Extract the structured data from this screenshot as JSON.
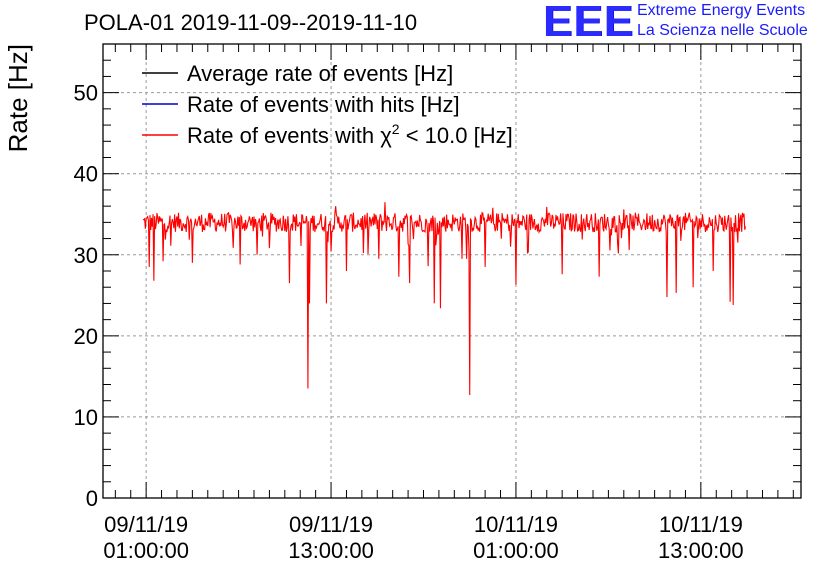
{
  "header": {
    "title": "POLA-01 2019-11-09--2019-11-10",
    "logo_text": "EEE",
    "logo_line1": "Extreme Energy Events",
    "logo_line2": "La Scienza nelle Scuole"
  },
  "colors": {
    "average": "#000000",
    "hits": "#0000cc",
    "chi2": "#ff0000",
    "logo": "#2b2bff",
    "grid": "#9a9a9a"
  },
  "chart_data": {
    "type": "line",
    "ylabel": "Rate [Hz]",
    "xlabel": "",
    "ylim": [
      0,
      56
    ],
    "xlim_hours": [
      -2.8,
      42.5
    ],
    "grid": true,
    "legend_position": "top-left",
    "y_ticks": [
      0,
      10,
      20,
      30,
      40,
      50
    ],
    "x_ticks": [
      {
        "hour": 0,
        "line1": "09/11/19",
        "line2": "01:00:00"
      },
      {
        "hour": 12,
        "line1": "09/11/19",
        "line2": "13:00:00"
      },
      {
        "hour": 24,
        "line1": "10/11/19",
        "line2": "01:00:00"
      },
      {
        "hour": 36,
        "line1": "10/11/19",
        "line2": "13:00:00"
      }
    ],
    "series": [
      {
        "name": "Average rate of events [Hz]",
        "color_key": "average",
        "visible": false
      },
      {
        "name": "Rate of events with hits [Hz]",
        "color_key": "hits",
        "visible": false
      },
      {
        "name": "Rate of events with χ² < 10.0 [Hz]",
        "name_prefix": "Rate of events with ",
        "chi_symbol": "χ",
        "chi_sup": "2",
        "name_suffix": " < 10.0 [Hz]",
        "color_key": "chi2",
        "visible": true,
        "x_start_hour": -0.2,
        "x_end_hour": 38.9,
        "baseline": 34,
        "noise_amplitude": 1.2,
        "dips": [
          {
            "hour": 0.2,
            "value": 28.5
          },
          {
            "hour": 0.5,
            "value": 26.8
          },
          {
            "hour": 1.1,
            "value": 29.2
          },
          {
            "hour": 3.0,
            "value": 29.0
          },
          {
            "hour": 6.1,
            "value": 28.8
          },
          {
            "hour": 7.2,
            "value": 30.0
          },
          {
            "hour": 9.3,
            "value": 26.5
          },
          {
            "hour": 10.5,
            "value": 13.5
          },
          {
            "hour": 10.6,
            "value": 24.0
          },
          {
            "hour": 11.7,
            "value": 24.0
          },
          {
            "hour": 13.0,
            "value": 28.0
          },
          {
            "hour": 14.1,
            "value": 30.2
          },
          {
            "hour": 15.1,
            "value": 29.5
          },
          {
            "hour": 16.4,
            "value": 27.3
          },
          {
            "hour": 17.1,
            "value": 26.5
          },
          {
            "hour": 18.3,
            "value": 28.6
          },
          {
            "hour": 18.7,
            "value": 24.0
          },
          {
            "hour": 19.1,
            "value": 23.4
          },
          {
            "hour": 20.5,
            "value": 29.5
          },
          {
            "hour": 20.8,
            "value": 29.5
          },
          {
            "hour": 21.0,
            "value": 12.7
          },
          {
            "hour": 22.0,
            "value": 28.5
          },
          {
            "hour": 24.0,
            "value": 26.3
          },
          {
            "hour": 27.0,
            "value": 27.6
          },
          {
            "hour": 29.4,
            "value": 27.3
          },
          {
            "hour": 33.8,
            "value": 24.8
          },
          {
            "hour": 34.4,
            "value": 25.3
          },
          {
            "hour": 35.5,
            "value": 26.0
          },
          {
            "hour": 36.8,
            "value": 28.0
          },
          {
            "hour": 37.9,
            "value": 24.2
          },
          {
            "hour": 38.1,
            "value": 23.8
          },
          {
            "hour": 38.4,
            "value": 31.5
          }
        ],
        "spikes": [
          {
            "hour": 12.3,
            "value": 36.0
          },
          {
            "hour": 15.5,
            "value": 36.5
          },
          {
            "hour": 22.5,
            "value": 35.8
          },
          {
            "hour": 26.0,
            "value": 35.9
          },
          {
            "hour": 31.0,
            "value": 35.6
          }
        ]
      }
    ]
  }
}
